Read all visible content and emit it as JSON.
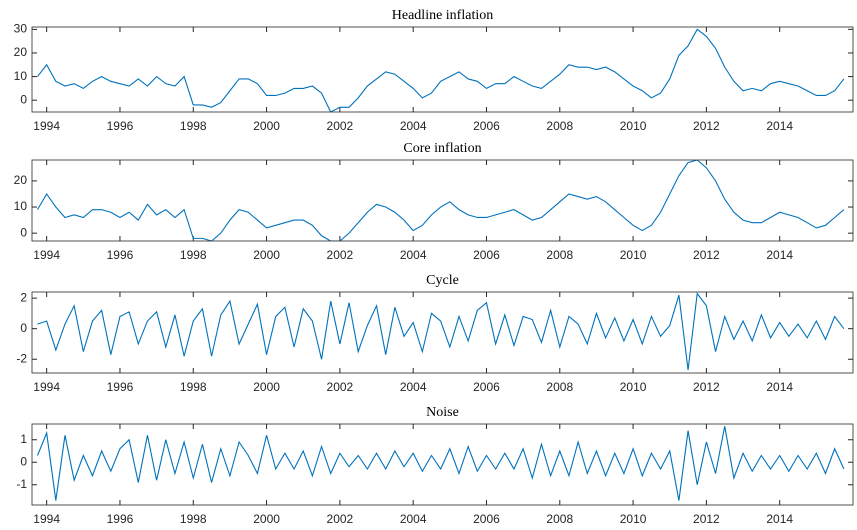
{
  "chart_data": [
    {
      "type": "line",
      "title": "Headline inflation",
      "color": "#0072bd",
      "x": [
        1993.75,
        1994,
        1994.25,
        1994.5,
        1994.75,
        1995,
        1995.25,
        1995.5,
        1995.75,
        1996,
        1996.25,
        1996.5,
        1996.75,
        1997,
        1997.25,
        1997.5,
        1997.75,
        1998,
        1998.25,
        1998.5,
        1998.75,
        1999,
        1999.25,
        1999.5,
        1999.75,
        2000,
        2000.25,
        2000.5,
        2000.75,
        2001,
        2001.25,
        2001.5,
        2001.75,
        2002,
        2002.25,
        2002.5,
        2002.75,
        2003,
        2003.25,
        2003.5,
        2003.75,
        2004,
        2004.25,
        2004.5,
        2004.75,
        2005,
        2005.25,
        2005.5,
        2005.75,
        2006,
        2006.25,
        2006.5,
        2006.75,
        2007,
        2007.25,
        2007.5,
        2007.75,
        2008,
        2008.25,
        2008.5,
        2008.75,
        2009,
        2009.25,
        2009.5,
        2009.75,
        2010,
        2010.25,
        2010.5,
        2010.75,
        2011,
        2011.25,
        2011.5,
        2011.75,
        2012,
        2012.25,
        2012.5,
        2012.75,
        2013,
        2013.25,
        2013.5,
        2013.75,
        2014,
        2014.25,
        2014.5,
        2014.75,
        2015,
        2015.25,
        2015.5,
        2015.75
      ],
      "values": [
        10,
        15,
        8,
        6,
        7,
        5,
        8,
        10,
        8,
        7,
        6,
        9,
        6,
        10,
        7,
        6,
        10,
        -2,
        -2,
        -3,
        -1,
        4,
        9,
        9,
        7,
        2,
        2,
        3,
        5,
        5,
        6,
        3,
        -5,
        -3,
        -3,
        1,
        6,
        9,
        12,
        11,
        8,
        5,
        1,
        3,
        8,
        10,
        12,
        9,
        8,
        5,
        7,
        7,
        10,
        8,
        6,
        5,
        8,
        11,
        15,
        14,
        14,
        13,
        14,
        12,
        9,
        6,
        4,
        1,
        3,
        9,
        19,
        23,
        30,
        27,
        22,
        14,
        8,
        4,
        5,
        4,
        7,
        8,
        7,
        6,
        4,
        2,
        2,
        4,
        9
      ],
      "xlim": [
        1993.6,
        2016
      ],
      "xticks": [
        1994,
        1996,
        1998,
        2000,
        2002,
        2004,
        2006,
        2008,
        2010,
        2012,
        2014
      ],
      "ylim": [
        -5,
        31
      ],
      "yticks": [
        0,
        10,
        20,
        30
      ]
    },
    {
      "type": "line",
      "title": "Core inflation",
      "color": "#0072bd",
      "x": [
        1993.75,
        1994,
        1994.25,
        1994.5,
        1994.75,
        1995,
        1995.25,
        1995.5,
        1995.75,
        1996,
        1996.25,
        1996.5,
        1996.75,
        1997,
        1997.25,
        1997.5,
        1997.75,
        1998,
        1998.25,
        1998.5,
        1998.75,
        1999,
        1999.25,
        1999.5,
        1999.75,
        2000,
        2000.25,
        2000.5,
        2000.75,
        2001,
        2001.25,
        2001.5,
        2001.75,
        2002,
        2002.25,
        2002.5,
        2002.75,
        2003,
        2003.25,
        2003.5,
        2003.75,
        2004,
        2004.25,
        2004.5,
        2004.75,
        2005,
        2005.25,
        2005.5,
        2005.75,
        2006,
        2006.25,
        2006.5,
        2006.75,
        2007,
        2007.25,
        2007.5,
        2007.75,
        2008,
        2008.25,
        2008.5,
        2008.75,
        2009,
        2009.25,
        2009.5,
        2009.75,
        2010,
        2010.25,
        2010.5,
        2010.75,
        2011,
        2011.25,
        2011.5,
        2011.75,
        2012,
        2012.25,
        2012.5,
        2012.75,
        2013,
        2013.25,
        2013.5,
        2013.75,
        2014,
        2014.25,
        2014.5,
        2014.75,
        2015,
        2015.25,
        2015.5,
        2015.75
      ],
      "values": [
        9,
        15,
        10,
        6,
        7,
        6,
        9,
        9,
        8,
        6,
        8,
        5,
        11,
        7,
        9,
        6,
        9,
        -2,
        -2,
        -3,
        0,
        5,
        9,
        8,
        5,
        2,
        3,
        4,
        5,
        5,
        3,
        -1,
        -3,
        -3,
        0,
        4,
        8,
        11,
        10,
        8,
        5,
        1,
        3,
        7,
        10,
        12,
        9,
        7,
        6,
        6,
        7,
        8,
        9,
        7,
        5,
        6,
        9,
        12,
        15,
        14,
        13,
        14,
        12,
        9,
        6,
        3,
        1,
        3,
        8,
        15,
        22,
        27,
        28,
        25,
        20,
        13,
        8,
        5,
        4,
        4,
        6,
        8,
        7,
        6,
        4,
        2,
        3,
        6,
        9
      ],
      "xlim": [
        1993.6,
        2016
      ],
      "xticks": [
        1994,
        1996,
        1998,
        2000,
        2002,
        2004,
        2006,
        2008,
        2010,
        2012,
        2014
      ],
      "ylim": [
        -3,
        28
      ],
      "yticks": [
        0,
        10,
        20
      ]
    },
    {
      "type": "line",
      "title": "Cycle",
      "color": "#0072bd",
      "x": [
        1993.75,
        1994,
        1994.25,
        1994.5,
        1994.75,
        1995,
        1995.25,
        1995.5,
        1995.75,
        1996,
        1996.25,
        1996.5,
        1996.75,
        1997,
        1997.25,
        1997.5,
        1997.75,
        1998,
        1998.25,
        1998.5,
        1998.75,
        1999,
        1999.25,
        1999.5,
        1999.75,
        2000,
        2000.25,
        2000.5,
        2000.75,
        2001,
        2001.25,
        2001.5,
        2001.75,
        2002,
        2002.25,
        2002.5,
        2002.75,
        2003,
        2003.25,
        2003.5,
        2003.75,
        2004,
        2004.25,
        2004.5,
        2004.75,
        2005,
        2005.25,
        2005.5,
        2005.75,
        2006,
        2006.25,
        2006.5,
        2006.75,
        2007,
        2007.25,
        2007.5,
        2007.75,
        2008,
        2008.25,
        2008.5,
        2008.75,
        2009,
        2009.25,
        2009.5,
        2009.75,
        2010,
        2010.25,
        2010.5,
        2010.75,
        2011,
        2011.25,
        2011.5,
        2011.75,
        2012,
        2012.25,
        2012.5,
        2012.75,
        2013,
        2013.25,
        2013.5,
        2013.75,
        2014,
        2014.25,
        2014.5,
        2014.75,
        2015,
        2015.25,
        2015.5,
        2015.75
      ],
      "values": [
        0.3,
        0.5,
        -1.4,
        0.3,
        1.5,
        -1.5,
        0.5,
        1.2,
        -1.7,
        0.8,
        1.1,
        -1.0,
        0.5,
        1.1,
        -1.2,
        0.9,
        -1.8,
        0.5,
        1.3,
        -1.8,
        0.9,
        1.8,
        -1.0,
        0.3,
        1.6,
        -1.7,
        0.8,
        1.4,
        -1.2,
        1.3,
        0.5,
        -2.0,
        1.8,
        -1.0,
        1.7,
        -1.5,
        0.2,
        1.5,
        -1.7,
        1.4,
        -0.5,
        0.4,
        -1.5,
        1.0,
        0.5,
        -1.2,
        0.8,
        -0.8,
        1.2,
        1.7,
        -1.0,
        0.9,
        -1.1,
        0.8,
        0.6,
        -0.9,
        1.2,
        -1.2,
        0.8,
        0.3,
        -1.0,
        1.0,
        -0.6,
        0.7,
        -0.8,
        0.6,
        -1.0,
        0.8,
        -0.5,
        0.2,
        2.2,
        -2.7,
        2.3,
        1.5,
        -1.5,
        0.8,
        -0.7,
        0.5,
        -0.8,
        0.9,
        -0.6,
        0.4,
        -0.5,
        0.3,
        -0.6,
        0.5,
        -0.7,
        0.8,
        0.0
      ],
      "xlim": [
        1993.6,
        2016
      ],
      "xticks": [
        1994,
        1996,
        1998,
        2000,
        2002,
        2004,
        2006,
        2008,
        2010,
        2012,
        2014
      ],
      "ylim": [
        -2.9,
        2.4
      ],
      "yticks": [
        -2,
        0,
        2
      ]
    },
    {
      "type": "line",
      "title": "Noise",
      "color": "#0072bd",
      "x": [
        1993.75,
        1994,
        1994.25,
        1994.5,
        1994.75,
        1995,
        1995.25,
        1995.5,
        1995.75,
        1996,
        1996.25,
        1996.5,
        1996.75,
        1997,
        1997.25,
        1997.5,
        1997.75,
        1998,
        1998.25,
        1998.5,
        1998.75,
        1999,
        1999.25,
        1999.5,
        1999.75,
        2000,
        2000.25,
        2000.5,
        2000.75,
        2001,
        2001.25,
        2001.5,
        2001.75,
        2002,
        2002.25,
        2002.5,
        2002.75,
        2003,
        2003.25,
        2003.5,
        2003.75,
        2004,
        2004.25,
        2004.5,
        2004.75,
        2005,
        2005.25,
        2005.5,
        2005.75,
        2006,
        2006.25,
        2006.5,
        2006.75,
        2007,
        2007.25,
        2007.5,
        2007.75,
        2008,
        2008.25,
        2008.5,
        2008.75,
        2009,
        2009.25,
        2009.5,
        2009.75,
        2010,
        2010.25,
        2010.5,
        2010.75,
        2011,
        2011.25,
        2011.5,
        2011.75,
        2012,
        2012.25,
        2012.5,
        2012.75,
        2013,
        2013.25,
        2013.5,
        2013.75,
        2014,
        2014.25,
        2014.5,
        2014.75,
        2015,
        2015.25,
        2015.5,
        2015.75
      ],
      "values": [
        0.3,
        1.3,
        -1.7,
        1.2,
        -0.8,
        0.3,
        -0.6,
        0.5,
        -0.4,
        0.6,
        1.0,
        -0.9,
        1.2,
        -0.8,
        1.0,
        -0.5,
        0.9,
        -0.7,
        0.8,
        -0.9,
        0.6,
        -0.6,
        0.9,
        0.3,
        -0.5,
        1.2,
        -0.3,
        0.4,
        -0.3,
        0.5,
        -0.6,
        0.7,
        -0.5,
        0.4,
        -0.2,
        0.3,
        -0.3,
        0.4,
        -0.3,
        0.5,
        -0.2,
        0.4,
        -0.4,
        0.3,
        -0.3,
        0.6,
        -0.5,
        0.7,
        -0.4,
        0.3,
        -0.3,
        0.4,
        -0.3,
        0.6,
        -0.7,
        0.8,
        -0.6,
        0.5,
        -0.6,
        0.9,
        -0.5,
        0.5,
        -0.6,
        0.4,
        -0.5,
        0.6,
        -0.6,
        0.4,
        -0.3,
        0.5,
        -1.7,
        1.4,
        -1.0,
        0.9,
        -0.5,
        1.6,
        -0.7,
        0.4,
        -0.4,
        0.3,
        -0.3,
        0.3,
        -0.4,
        0.3,
        -0.3,
        0.4,
        -0.5,
        0.6,
        -0.3
      ],
      "xlim": [
        1993.6,
        2016
      ],
      "xticks": [
        1994,
        1996,
        1998,
        2000,
        2002,
        2004,
        2006,
        2008,
        2010,
        2012,
        2014
      ],
      "ylim": [
        -1.9,
        1.7
      ],
      "yticks": [
        -1,
        0,
        1
      ]
    }
  ]
}
